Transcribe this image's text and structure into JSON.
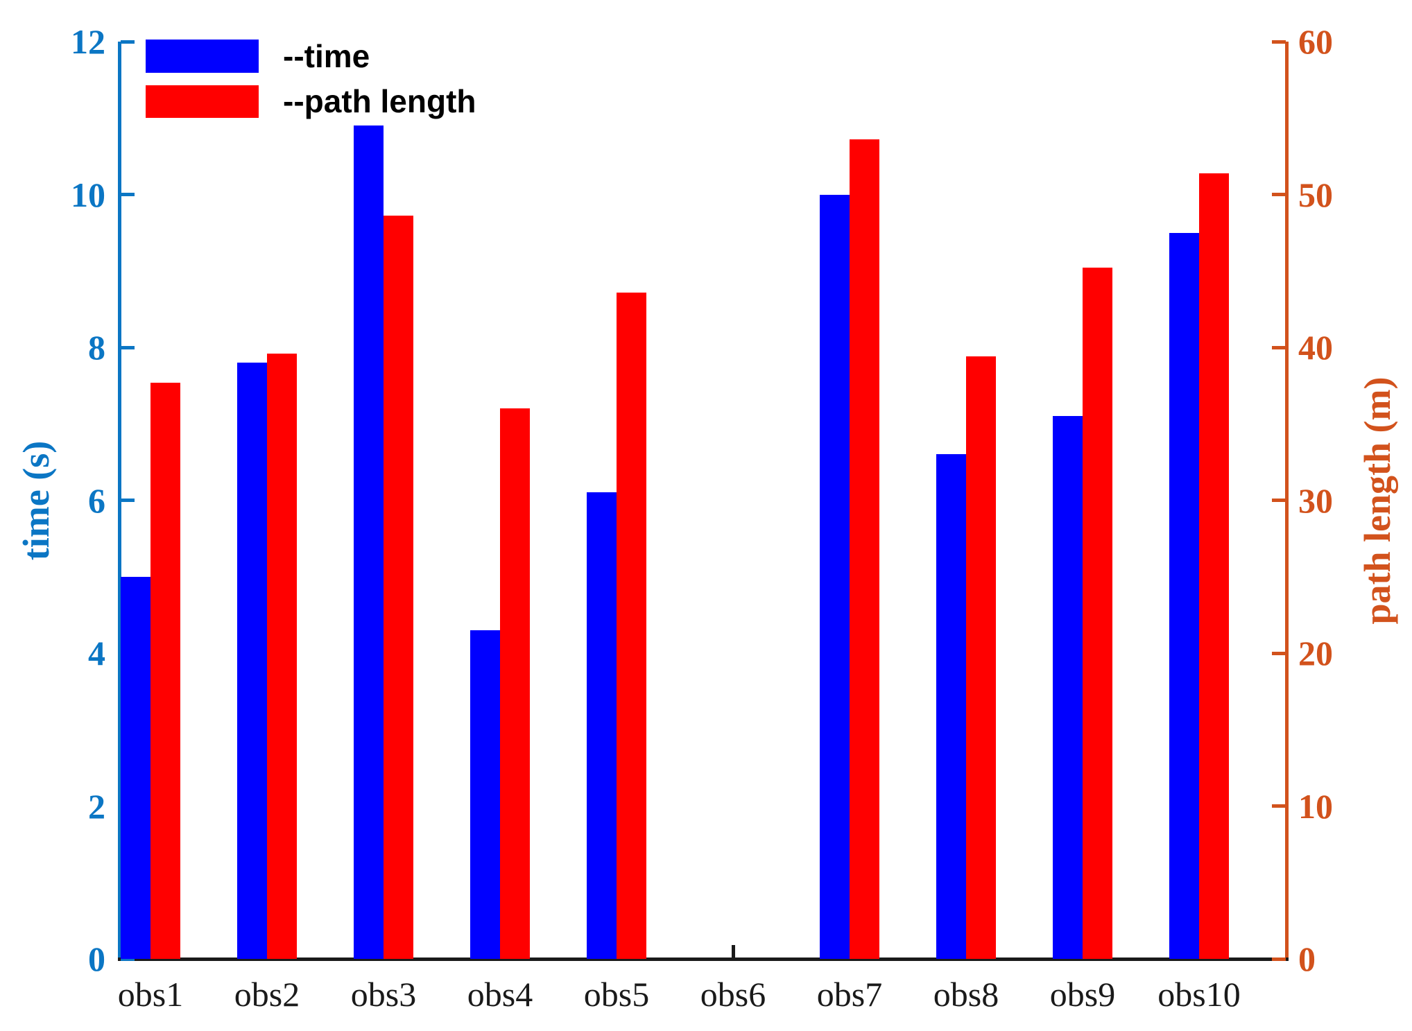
{
  "chart_data": {
    "type": "bar",
    "title": "",
    "categories": [
      "obs1",
      "obs2",
      "obs3",
      "obs4",
      "obs5",
      "obs6",
      "obs7",
      "obs8",
      "obs9",
      "obs10"
    ],
    "series": [
      {
        "name": "time",
        "axis": "left",
        "unit": "s",
        "color": "#0000FF",
        "values": [
          5.0,
          7.8,
          10.9,
          4.3,
          6.1,
          0,
          10.0,
          6.6,
          7.1,
          9.5
        ]
      },
      {
        "name": "path length",
        "axis": "right",
        "unit": "m",
        "color": "#FF0000",
        "values": [
          37.7,
          39.6,
          48.6,
          36.0,
          43.6,
          0,
          53.6,
          39.4,
          45.2,
          51.4
        ]
      }
    ],
    "left_axis": {
      "label": "time (s)",
      "range": [
        0,
        12
      ],
      "ticks": [
        0,
        2,
        4,
        6,
        8,
        10,
        12
      ],
      "color": "#0B76C4"
    },
    "right_axis": {
      "label": "path length (m)",
      "range": [
        0,
        60
      ],
      "ticks": [
        0,
        10,
        20,
        30,
        40,
        50,
        60
      ],
      "color": "#D2521C"
    },
    "x_axis": {
      "color": "#1A1A1A",
      "note": "category tick visible only at obs6 (no bars there)"
    },
    "legend": [
      {
        "label": "--time",
        "color": "#0000FF"
      },
      {
        "label": "--path length",
        "color": "#FF0000"
      }
    ],
    "grid": false,
    "legend_position": "top-left-inside"
  }
}
